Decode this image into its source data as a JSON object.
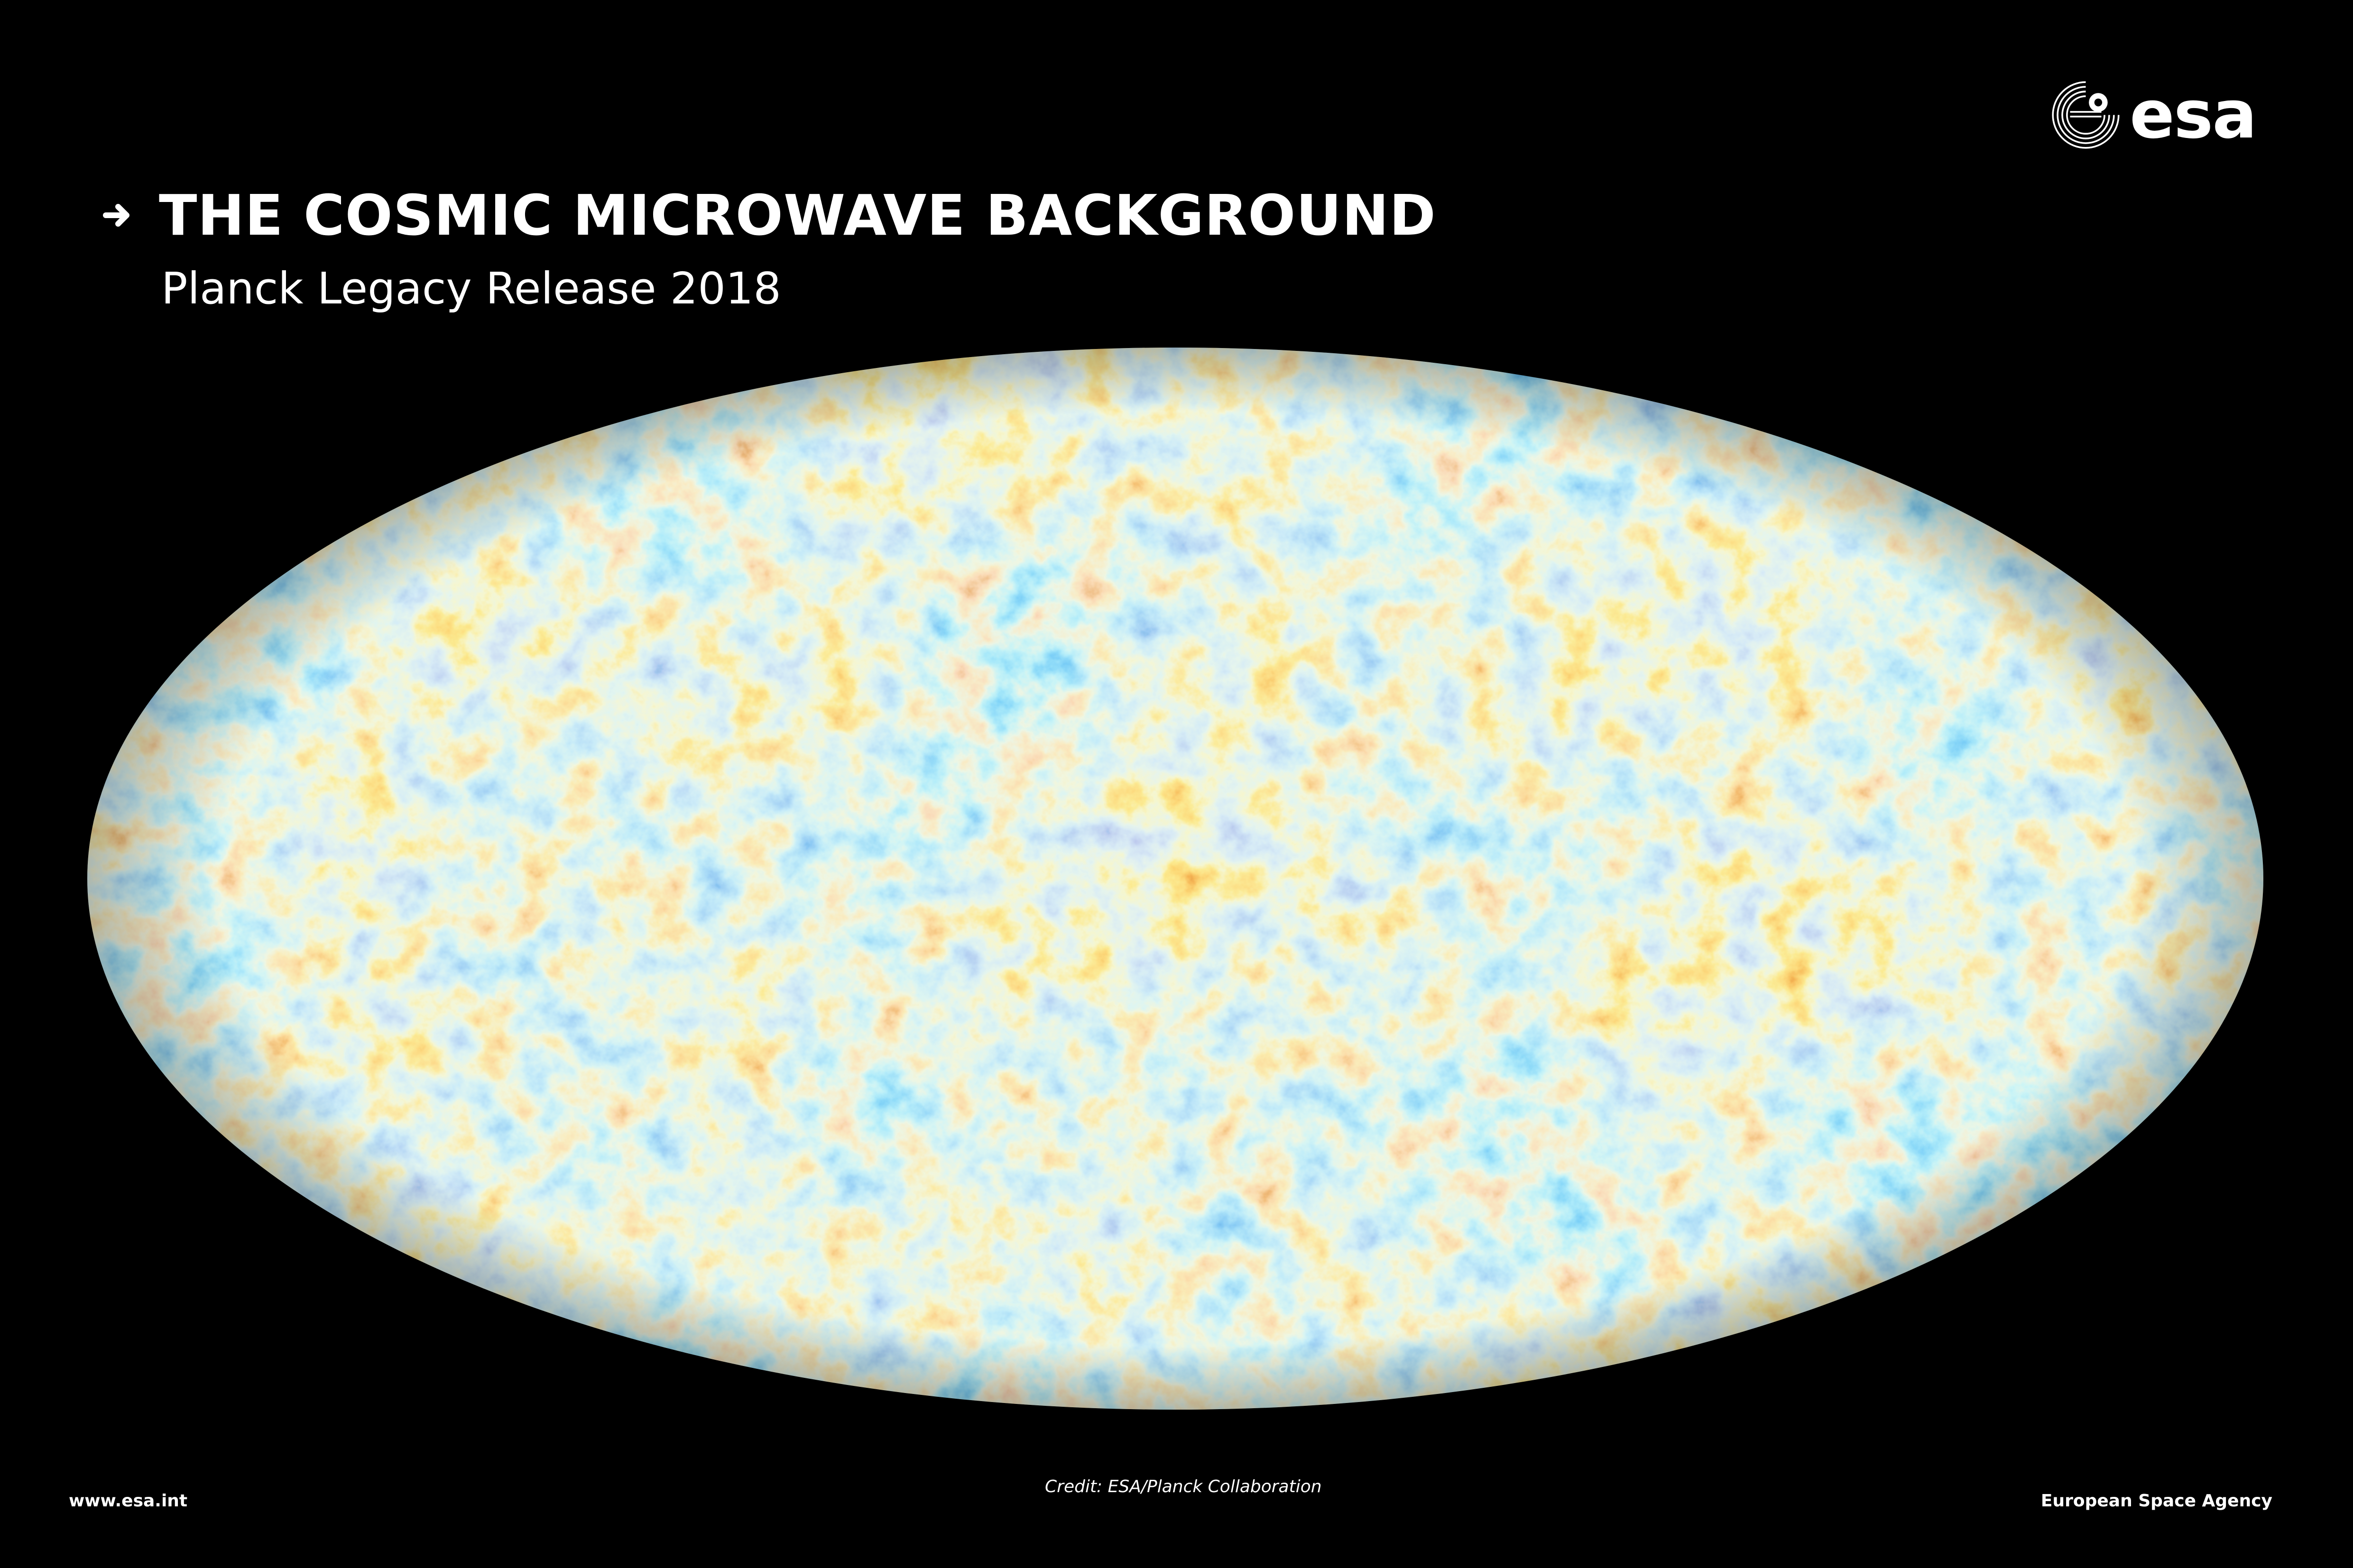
{
  "header": {
    "title": "THE COSMIC MICROWAVE BACKGROUND",
    "subtitle": "Planck Legacy Release 2018"
  },
  "logo": {
    "icon": "esa-logo-icon",
    "wordmark": "esa"
  },
  "footer": {
    "url": "www.esa.int",
    "credit": "Credit: ESA/Planck Collaboration",
    "agency": "European Space Agency"
  },
  "colors": {
    "background": "#000000",
    "text": "#ffffff",
    "cmb_cold_deep": "#1a3f9e",
    "cmb_cold": "#2f7fd8",
    "cmb_cool": "#6fc1ea",
    "cmb_neutral": "#f2e2a8",
    "cmb_warm": "#f4a340",
    "cmb_hot": "#d9541a",
    "cmb_hot_deep": "#8a1e0c"
  }
}
